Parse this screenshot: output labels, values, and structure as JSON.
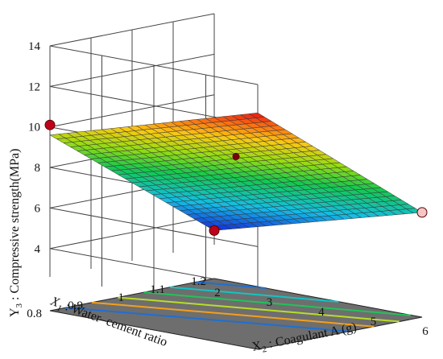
{
  "chart_data": {
    "type": "surface3d",
    "title": "",
    "z_axis": {
      "label_parts": [
        "Y",
        "3",
        " : Compressive strength(MPa)"
      ],
      "ticks": [
        4,
        6,
        8,
        10,
        12,
        14
      ],
      "range": [
        2.6,
        14
      ]
    },
    "x1_axis": {
      "label_parts": [
        "X",
        "1",
        " : Water–cement ratio"
      ],
      "ticks": [
        "0.8",
        "0.9",
        "1",
        "1.1",
        "1.2"
      ],
      "range": [
        0.8,
        1.2
      ]
    },
    "x2_axis": {
      "label_parts": [
        "X",
        "2",
        " : Coagulant A (g)"
      ],
      "ticks": [
        "2",
        "3",
        "4",
        "5",
        "6"
      ],
      "range": [
        2,
        6
      ]
    },
    "surface_corners": [
      {
        "x1": 0.8,
        "x2": 2,
        "y": 9.6
      },
      {
        "x1": 0.8,
        "x2": 6,
        "y": 12.6
      },
      {
        "x1": 1.2,
        "x2": 2,
        "y": 3.3
      },
      {
        "x1": 1.2,
        "x2": 6,
        "y": 6.1
      }
    ],
    "design_points": [
      {
        "x1": 0.8,
        "x2": 2,
        "y": 10.1,
        "color": "#c0001b"
      },
      {
        "x1": 1.0,
        "x2": 4,
        "y": 8.7,
        "color": "#7a0010"
      },
      {
        "x1": 1.2,
        "x2": 2,
        "y": 3.3,
        "color": "#c0001b"
      },
      {
        "x1": 1.2,
        "x2": 6,
        "y": 6.1,
        "color": "#f4c6c6"
      }
    ],
    "contour_colors": [
      "#1f6fd0",
      "#12c4c4",
      "#22c25a",
      "#b8dc2a",
      "#f0a020"
    ],
    "grid": true
  }
}
